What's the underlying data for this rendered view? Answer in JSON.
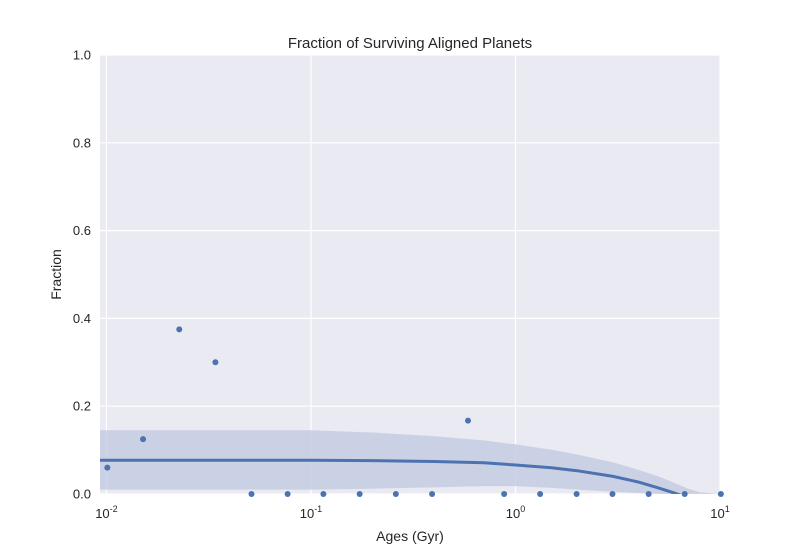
{
  "chart_data": {
    "type": "scatter",
    "title": "Fraction of Surviving Aligned Planets",
    "xlabel": "Ages (Gyr)",
    "ylabel": "Fraction",
    "xscale": "log",
    "xlim": [
      0.0093,
      10
    ],
    "ylim": [
      0,
      1
    ],
    "grid": true,
    "x_ticks": [
      {
        "value": 0.01,
        "base": "10",
        "exp": "-2"
      },
      {
        "value": 0.1,
        "base": "10",
        "exp": "-1"
      },
      {
        "value": 1,
        "base": "10",
        "exp": "0"
      },
      {
        "value": 10,
        "base": "10",
        "exp": "1"
      }
    ],
    "y_ticks": [
      "0.0",
      "0.2",
      "0.4",
      "0.6",
      "0.8",
      "1.0"
    ],
    "points": {
      "x": [
        0.0101,
        0.0151,
        0.0227,
        0.0341,
        0.0512,
        0.0769,
        0.115,
        0.173,
        0.26,
        0.391,
        0.586,
        0.88,
        1.32,
        1.99,
        2.98,
        4.48,
        6.72,
        10.1
      ],
      "y": [
        0.06,
        0.125,
        0.375,
        0.3,
        0.0,
        0.0,
        0.0,
        0.0,
        0.0,
        0.0,
        0.167,
        0.0,
        0.0,
        0.0,
        0.0,
        0.0,
        0.0,
        0.0
      ]
    },
    "fit_line": {
      "x": [
        0.0093,
        0.02,
        0.05,
        0.1,
        0.2,
        0.4,
        0.7,
        1.0,
        1.5,
        2.0,
        3.0,
        4.0,
        5.0,
        6.0,
        7.0,
        8.0,
        10.0
      ],
      "y": [
        0.077,
        0.077,
        0.077,
        0.077,
        0.076,
        0.074,
        0.071,
        0.066,
        0.06,
        0.053,
        0.04,
        0.027,
        0.014,
        0.002,
        -0.009,
        -0.02,
        -0.04
      ]
    },
    "confidence_band": {
      "x": [
        0.0093,
        0.02,
        0.05,
        0.1,
        0.2,
        0.4,
        0.7,
        1.0,
        1.5,
        2.0,
        3.0,
        4.0,
        5.0,
        6.0,
        7.0,
        8.0,
        10.0
      ],
      "upper": [
        0.145,
        0.145,
        0.145,
        0.145,
        0.14,
        0.132,
        0.122,
        0.113,
        0.101,
        0.09,
        0.072,
        0.055,
        0.04,
        0.025,
        0.012,
        0.004,
        0.0
      ],
      "lower": [
        0.01,
        0.01,
        0.01,
        0.01,
        0.012,
        0.015,
        0.018,
        0.018,
        0.014,
        0.01,
        0.005,
        0.002,
        0.0,
        0.0,
        0.0,
        0.0,
        0.0
      ]
    },
    "colors": {
      "background": "#eaeaf2",
      "grid": "#ffffff",
      "points": "#4c72b0",
      "line": "#4c72b0",
      "band": "#c5cce3"
    }
  }
}
